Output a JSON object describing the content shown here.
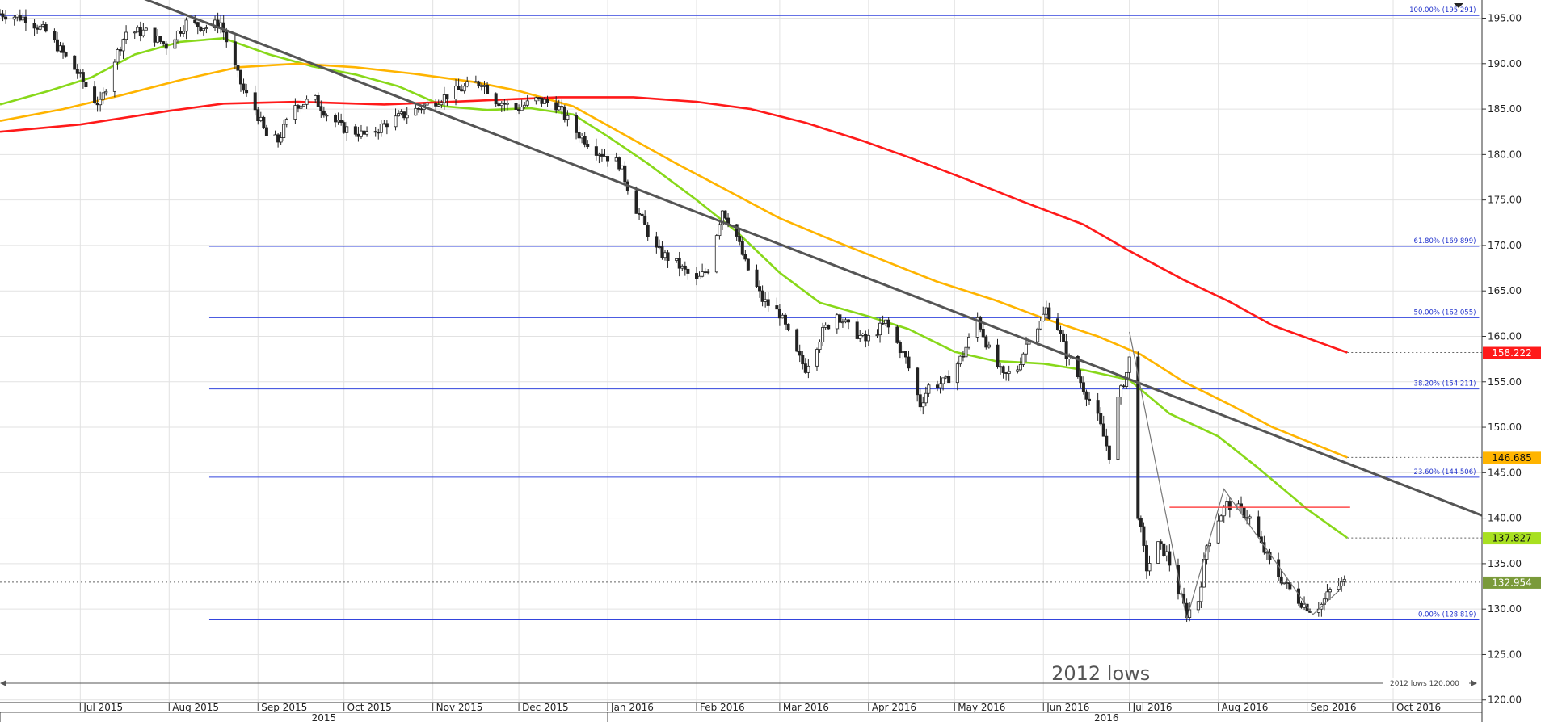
{
  "chart_data": {
    "type": "candlestick",
    "title": "",
    "ylim": [
      119,
      197
    ],
    "xlim": [
      "2015-06-03",
      "2016-11-01"
    ],
    "y_ticks": [
      "195.00",
      "190.00",
      "185.00",
      "180.00",
      "175.00",
      "170.00",
      "165.00",
      "160.00",
      "155.00",
      "150.00",
      "145.00",
      "140.00",
      "135.00",
      "130.00",
      "125.00",
      "120.00"
    ],
    "month_labels": [
      {
        "label": "Jul 2015",
        "date": "2015-07-01"
      },
      {
        "label": "Aug 2015",
        "date": "2015-08-01"
      },
      {
        "label": "Sep 2015",
        "date": "2015-09-01"
      },
      {
        "label": "Oct 2015",
        "date": "2015-10-01"
      },
      {
        "label": "Nov 2015",
        "date": "2015-11-01"
      },
      {
        "label": "Dec 2015",
        "date": "2015-12-01"
      },
      {
        "label": "Jan 2016",
        "date": "2016-01-01"
      },
      {
        "label": "Feb 2016",
        "date": "2016-02-01"
      },
      {
        "label": "Mar 2016",
        "date": "2016-03-01"
      },
      {
        "label": "Apr 2016",
        "date": "2016-04-01"
      },
      {
        "label": "May 2016",
        "date": "2016-05-01"
      },
      {
        "label": "Jun 2016",
        "date": "2016-06-01"
      },
      {
        "label": "Jul 2016",
        "date": "2016-07-01"
      },
      {
        "label": "Aug 2016",
        "date": "2016-08-01"
      },
      {
        "label": "Sep 2016",
        "date": "2016-09-01"
      },
      {
        "label": "Oct 2016",
        "date": "2016-10-01"
      }
    ],
    "year_labels": [
      {
        "label": "2015",
        "date": "2015-09-24"
      },
      {
        "label": "2016",
        "date": "2016-06-23"
      }
    ],
    "fib_levels": [
      {
        "label": "100.00% (195.291)",
        "value": 195.291,
        "start": "2015-06-03"
      },
      {
        "label": "61.80% (169.899)",
        "value": 169.899,
        "start": "2015-08-15"
      },
      {
        "label": "50.00% (162.055)",
        "value": 162.055,
        "start": "2015-08-15"
      },
      {
        "label": "38.20% (154.211)",
        "value": 154.211,
        "start": "2015-08-15"
      },
      {
        "label": "23.60% (144.506)",
        "value": 144.506,
        "start": "2015-08-15"
      },
      {
        "label": "0.00% (128.819)",
        "value": 128.819,
        "start": "2015-08-15"
      }
    ],
    "fib_end": "2016-10-31",
    "price_points": [
      [
        "2015-06-03",
        195.5
      ],
      [
        "2015-06-12",
        195.0
      ],
      [
        "2015-06-19",
        193.5
      ],
      [
        "2015-06-24",
        191.5
      ],
      [
        "2015-06-30",
        189.0
      ],
      [
        "2015-07-06",
        186.0
      ],
      [
        "2015-07-08",
        185.5
      ],
      [
        "2015-07-13",
        190.5
      ],
      [
        "2015-07-17",
        193.5
      ],
      [
        "2015-07-24",
        193.5
      ],
      [
        "2015-07-31",
        192.0
      ],
      [
        "2015-08-07",
        194.5
      ],
      [
        "2015-08-14",
        194.0
      ],
      [
        "2015-08-19",
        194.5
      ],
      [
        "2015-08-24",
        189.5
      ],
      [
        "2015-08-27",
        187.0
      ],
      [
        "2015-08-31",
        185.0
      ],
      [
        "2015-09-04",
        182.0
      ],
      [
        "2015-09-08",
        181.5
      ],
      [
        "2015-09-14",
        185.5
      ],
      [
        "2015-09-21",
        186.0
      ],
      [
        "2015-09-25",
        184.5
      ],
      [
        "2015-09-30",
        183.0
      ],
      [
        "2015-10-05",
        182.5
      ],
      [
        "2015-10-09",
        182.0
      ],
      [
        "2015-10-16",
        183.5
      ],
      [
        "2015-10-23",
        184.5
      ],
      [
        "2015-10-30",
        185.5
      ],
      [
        "2015-11-06",
        186.5
      ],
      [
        "2015-11-13",
        187.5
      ],
      [
        "2015-11-18",
        188.0
      ],
      [
        "2015-11-23",
        186.0
      ],
      [
        "2015-11-30",
        185.0
      ],
      [
        "2015-12-07",
        186.0
      ],
      [
        "2015-12-14",
        185.5
      ],
      [
        "2015-12-21",
        182.5
      ],
      [
        "2015-12-28",
        180.5
      ],
      [
        "2016-01-05",
        179.0
      ],
      [
        "2016-01-11",
        174.0
      ],
      [
        "2016-01-18",
        169.5
      ],
      [
        "2016-01-25",
        168.0
      ],
      [
        "2016-02-01",
        166.0
      ],
      [
        "2016-02-05",
        167.5
      ],
      [
        "2016-02-10",
        174.0
      ],
      [
        "2016-02-15",
        171.0
      ],
      [
        "2016-02-18",
        168.0
      ],
      [
        "2016-02-24",
        164.0
      ],
      [
        "2016-03-01",
        162.5
      ],
      [
        "2016-03-07",
        158.0
      ],
      [
        "2016-03-10",
        156.5
      ],
      [
        "2016-03-16",
        160.5
      ],
      [
        "2016-03-21",
        162.5
      ],
      [
        "2016-03-25",
        161.0
      ],
      [
        "2016-03-31",
        159.5
      ],
      [
        "2016-04-07",
        161.5
      ],
      [
        "2016-04-14",
        157.5
      ],
      [
        "2016-04-19",
        152.5
      ],
      [
        "2016-04-22",
        154.5
      ],
      [
        "2016-04-28",
        155.0
      ],
      [
        "2016-05-04",
        158.0
      ],
      [
        "2016-05-09",
        162.0
      ],
      [
        "2016-05-13",
        158.5
      ],
      [
        "2016-05-18",
        155.5
      ],
      [
        "2016-05-23",
        156.5
      ],
      [
        "2016-05-27",
        160.0
      ],
      [
        "2016-05-31",
        161.5
      ],
      [
        "2016-06-02",
        163.0
      ],
      [
        "2016-06-06",
        161.0
      ],
      [
        "2016-06-09",
        158.0
      ],
      [
        "2016-06-14",
        155.0
      ],
      [
        "2016-06-20",
        151.0
      ],
      [
        "2016-06-24",
        147.0
      ],
      [
        "2016-06-27",
        153.0
      ],
      [
        "2016-06-30",
        156.0
      ],
      [
        "2016-07-02",
        159.0
      ],
      [
        "2016-07-04",
        140.5
      ],
      [
        "2016-07-07",
        134.5
      ],
      [
        "2016-07-11",
        137.0
      ],
      [
        "2016-07-14",
        136.0
      ],
      [
        "2016-07-18",
        132.0
      ],
      [
        "2016-07-21",
        129.5
      ],
      [
        "2016-07-25",
        131.0
      ],
      [
        "2016-07-28",
        137.0
      ],
      [
        "2016-08-01",
        140.0
      ],
      [
        "2016-08-04",
        141.5
      ],
      [
        "2016-08-08",
        141.0
      ],
      [
        "2016-08-12",
        140.0
      ],
      [
        "2016-08-16",
        137.0
      ],
      [
        "2016-08-20",
        134.5
      ],
      [
        "2016-08-25",
        132.5
      ],
      [
        "2016-08-29",
        131.0
      ],
      [
        "2016-09-02",
        130.0
      ],
      [
        "2016-09-06",
        130.5
      ],
      [
        "2016-09-09",
        132.0
      ],
      [
        "2016-09-14",
        132.954
      ]
    ],
    "moving_averages": [
      {
        "name": "",
        "color": "#88d81a",
        "last_value": 137.827,
        "points": [
          [
            "2015-06-03",
            185.5
          ],
          [
            "2015-06-20",
            187.0
          ],
          [
            "2015-07-05",
            188.5
          ],
          [
            "2015-07-20",
            191.0
          ],
          [
            "2015-08-05",
            192.4
          ],
          [
            "2015-08-20",
            192.8
          ],
          [
            "2015-09-05",
            191.0
          ],
          [
            "2015-09-20",
            189.7
          ],
          [
            "2015-10-05",
            188.8
          ],
          [
            "2015-10-20",
            187.5
          ],
          [
            "2015-11-05",
            185.3
          ],
          [
            "2015-11-20",
            184.9
          ],
          [
            "2015-12-05",
            185.1
          ],
          [
            "2015-12-20",
            184.4
          ],
          [
            "2016-01-01",
            182.0
          ],
          [
            "2016-01-15",
            179.0
          ],
          [
            "2016-02-01",
            175.0
          ],
          [
            "2016-02-15",
            171.5
          ],
          [
            "2016-03-01",
            167.0
          ],
          [
            "2016-03-15",
            163.7
          ],
          [
            "2016-04-01",
            162.2
          ],
          [
            "2016-04-15",
            160.8
          ],
          [
            "2016-05-01",
            158.3
          ],
          [
            "2016-05-15",
            157.3
          ],
          [
            "2016-06-01",
            157.0
          ],
          [
            "2016-06-15",
            156.3
          ],
          [
            "2016-07-01",
            155.2
          ],
          [
            "2016-07-15",
            151.5
          ],
          [
            "2016-08-01",
            149.0
          ],
          [
            "2016-08-15",
            145.5
          ],
          [
            "2016-09-01",
            141.0
          ],
          [
            "2016-09-15",
            137.827
          ]
        ]
      },
      {
        "name": "",
        "color": "#ffb400",
        "last_value": 146.685,
        "points": [
          [
            "2015-06-03",
            183.7
          ],
          [
            "2015-06-25",
            185.0
          ],
          [
            "2015-07-15",
            186.5
          ],
          [
            "2015-08-05",
            188.2
          ],
          [
            "2015-08-25",
            189.6
          ],
          [
            "2015-09-15",
            190.0
          ],
          [
            "2015-10-05",
            189.6
          ],
          [
            "2015-10-25",
            188.9
          ],
          [
            "2015-11-15",
            188.0
          ],
          [
            "2015-12-01",
            187.0
          ],
          [
            "2015-12-20",
            185.3
          ],
          [
            "2016-01-05",
            182.5
          ],
          [
            "2016-01-25",
            179.0
          ],
          [
            "2016-02-15",
            175.5
          ],
          [
            "2016-03-01",
            173.0
          ],
          [
            "2016-03-20",
            170.5
          ],
          [
            "2016-04-05",
            168.5
          ],
          [
            "2016-04-25",
            166.0
          ],
          [
            "2016-05-15",
            164.0
          ],
          [
            "2016-06-01",
            162.0
          ],
          [
            "2016-06-20",
            160.0
          ],
          [
            "2016-07-05",
            158.0
          ],
          [
            "2016-07-20",
            155.0
          ],
          [
            "2016-08-05",
            152.5
          ],
          [
            "2016-08-20",
            150.0
          ],
          [
            "2016-09-15",
            146.685
          ]
        ]
      },
      {
        "name": "",
        "color": "#ff1a1a",
        "last_value": 158.222,
        "points": [
          [
            "2015-06-03",
            182.5
          ],
          [
            "2015-07-01",
            183.3
          ],
          [
            "2015-08-01",
            184.8
          ],
          [
            "2015-08-20",
            185.6
          ],
          [
            "2015-09-15",
            185.8
          ],
          [
            "2015-10-15",
            185.5
          ],
          [
            "2015-11-15",
            185.9
          ],
          [
            "2015-12-15",
            186.3
          ],
          [
            "2016-01-10",
            186.3
          ],
          [
            "2016-02-01",
            185.8
          ],
          [
            "2016-02-20",
            185.0
          ],
          [
            "2016-03-10",
            183.5
          ],
          [
            "2016-03-30",
            181.5
          ],
          [
            "2016-04-15",
            179.7
          ],
          [
            "2016-05-05",
            177.3
          ],
          [
            "2016-05-25",
            174.8
          ],
          [
            "2016-06-15",
            172.3
          ],
          [
            "2016-07-01",
            169.4
          ],
          [
            "2016-07-20",
            166.2
          ],
          [
            "2016-08-05",
            163.8
          ],
          [
            "2016-08-20",
            161.2
          ],
          [
            "2016-09-15",
            158.222
          ]
        ]
      }
    ],
    "current_price": 132.954,
    "trendline": [
      [
        "2015-07-08",
        199.0
      ],
      [
        "2016-11-01",
        140.3
      ]
    ],
    "resistance_line": {
      "value": 141.2,
      "start": "2016-07-15",
      "end": "2016-09-16"
    },
    "zigzag": [
      [
        "2016-07-01",
        160.5
      ],
      [
        "2016-07-21",
        128.9
      ],
      [
        "2016-08-03",
        143.2
      ],
      [
        "2016-09-03",
        129.4
      ],
      [
        "2016-09-12",
        132.0
      ]
    ],
    "low_ref_line": {
      "label": "2012 lows",
      "value": 120.0,
      "value_label": "120.000"
    },
    "annotations": [
      {
        "text": "2012 lows",
        "date": "2016-06-21",
        "value": 122.2
      }
    ]
  },
  "badges": [
    {
      "value": "158.222",
      "bg": "#ff1a1a",
      "color": "#ffffff"
    },
    {
      "value": "146.685",
      "bg": "#ffb400",
      "color": "#111111"
    },
    {
      "value": "137.827",
      "bg": "#a8e020",
      "color": "#111111"
    },
    {
      "value": "132.954",
      "bg": "#7a9a3a",
      "color": "#ffffff"
    }
  ]
}
